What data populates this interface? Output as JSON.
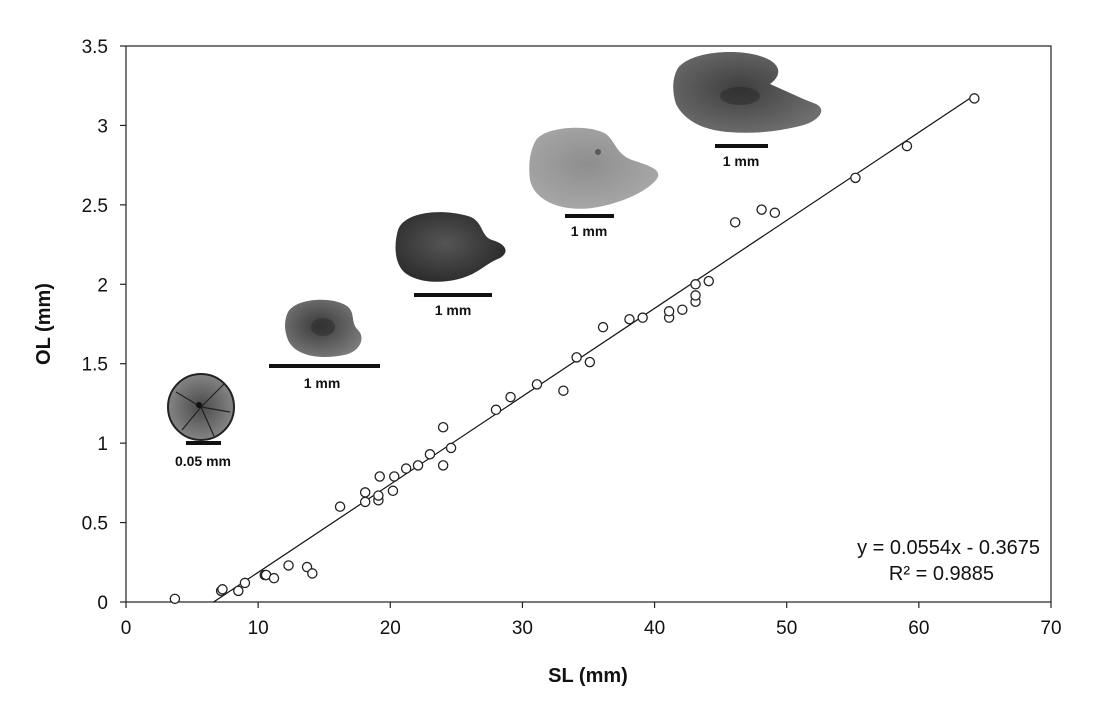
{
  "chart_data": {
    "type": "scatter",
    "xlabel": "SL (mm)",
    "ylabel": "OL (mm)",
    "xlim": [
      0,
      70
    ],
    "ylim": [
      0,
      3.5
    ],
    "x_ticks": [
      "0",
      "10",
      "20",
      "30",
      "40",
      "50",
      "60",
      "70"
    ],
    "y_ticks": [
      "0",
      "0.5",
      "1",
      "1.5",
      "2",
      "2.5",
      "3",
      "3.5"
    ],
    "grid": false,
    "series": [
      {
        "marker": "open-circle",
        "points": [
          [
            3.7,
            0.02
          ],
          [
            7.2,
            0.07
          ],
          [
            7.3,
            0.08
          ],
          [
            8.5,
            0.07
          ],
          [
            9.0,
            0.12
          ],
          [
            10.5,
            0.17
          ],
          [
            10.6,
            0.17
          ],
          [
            11.2,
            0.15
          ],
          [
            12.3,
            0.23
          ],
          [
            13.7,
            0.22
          ],
          [
            14.1,
            0.18
          ],
          [
            16.2,
            0.6
          ],
          [
            18.1,
            0.63
          ],
          [
            18.1,
            0.69
          ],
          [
            19.1,
            0.64
          ],
          [
            19.1,
            0.67
          ],
          [
            19.2,
            0.79
          ],
          [
            20.2,
            0.7
          ],
          [
            20.3,
            0.79
          ],
          [
            21.2,
            0.84
          ],
          [
            22.1,
            0.86
          ],
          [
            23.0,
            0.93
          ],
          [
            24.0,
            0.86
          ],
          [
            24.0,
            1.1
          ],
          [
            24.6,
            0.97
          ],
          [
            28.0,
            1.21
          ],
          [
            29.1,
            1.29
          ],
          [
            31.1,
            1.37
          ],
          [
            33.1,
            1.33
          ],
          [
            34.1,
            1.54
          ],
          [
            35.1,
            1.51
          ],
          [
            36.1,
            1.73
          ],
          [
            38.1,
            1.78
          ],
          [
            39.1,
            1.79
          ],
          [
            41.1,
            1.79
          ],
          [
            41.1,
            1.83
          ],
          [
            42.1,
            1.84
          ],
          [
            43.1,
            1.89
          ],
          [
            43.1,
            1.93
          ],
          [
            43.1,
            2.0
          ],
          [
            44.1,
            2.02
          ],
          [
            46.1,
            2.39
          ],
          [
            48.1,
            2.47
          ],
          [
            49.1,
            2.45
          ],
          [
            55.2,
            2.67
          ],
          [
            59.1,
            2.87
          ],
          [
            64.2,
            3.17
          ]
        ]
      }
    ],
    "trendline": {
      "type": "linear",
      "slope": 0.0554,
      "intercept": -0.3675,
      "x_range": [
        6.6,
        64.2
      ],
      "equation_label": "y = 0.0554x - 0.3675",
      "r2_label": "R² = 0.9885"
    },
    "annotations": [
      {
        "kind": "otolith-image",
        "shape": "round",
        "tone": "#6b6b6b",
        "scale_label": "0.05 mm"
      },
      {
        "kind": "otolith-image",
        "shape": "oval",
        "tone": "#5e5e5e",
        "scale_label": "1 mm"
      },
      {
        "kind": "otolith-image",
        "shape": "lobed",
        "tone": "#3c3c3c",
        "scale_label": "1 mm"
      },
      {
        "kind": "otolith-image",
        "shape": "lobed",
        "tone": "#9a9a9a",
        "scale_label": "1 mm"
      },
      {
        "kind": "otolith-image",
        "shape": "lobed",
        "tone": "#555555",
        "scale_label": "1 mm"
      }
    ]
  }
}
